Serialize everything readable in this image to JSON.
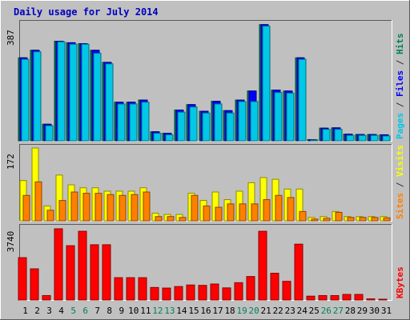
{
  "chart_data": [
    {
      "type": "bar",
      "title": "Daily usage for July 2014",
      "categories": [
        "1",
        "2",
        "3",
        "4",
        "5",
        "6",
        "7",
        "8",
        "9",
        "10",
        "11",
        "12",
        "13",
        "14",
        "15",
        "16",
        "17",
        "18",
        "19",
        "20",
        "21",
        "22",
        "23",
        "24",
        "25",
        "26",
        "27",
        "28",
        "29",
        "30",
        "31"
      ],
      "weekend_categories": [
        "5",
        "6",
        "12",
        "13",
        "19",
        "20",
        "26",
        "27"
      ],
      "axis_max_label": "387",
      "ylim": [
        0,
        387
      ],
      "legend_vertical": [
        {
          "text": "Pages",
          "color": "#00c8e6"
        },
        {
          "text": " / ",
          "color": "#333333"
        },
        {
          "text": "Files",
          "color": "#0000ff"
        },
        {
          "text": " / ",
          "color": "#333333"
        },
        {
          "text": "Hits",
          "color": "#00805c"
        }
      ],
      "series": [
        {
          "name": "Hits",
          "color": "#00805c",
          "values": [
            275,
            300,
            55,
            330,
            325,
            322,
            300,
            260,
            128,
            128,
            135,
            30,
            25,
            102,
            120,
            98,
            131,
            100,
            135,
            165,
            385,
            168,
            165,
            275,
            4,
            42,
            43,
            22,
            21,
            21,
            20
          ]
        },
        {
          "name": "Files",
          "color": "#0000ff",
          "values": [
            275,
            300,
            55,
            330,
            325,
            322,
            300,
            260,
            128,
            128,
            135,
            30,
            25,
            102,
            120,
            98,
            131,
            100,
            135,
            165,
            385,
            168,
            165,
            275,
            4,
            42,
            43,
            22,
            21,
            21,
            20
          ]
        },
        {
          "name": "Pages",
          "color": "#00c8e6",
          "values": [
            270,
            295,
            50,
            328,
            320,
            320,
            290,
            255,
            122,
            122,
            128,
            25,
            20,
            95,
            112,
            92,
            122,
            92,
            130,
            130,
            380,
            160,
            158,
            270,
            2,
            38,
            38,
            18,
            18,
            18,
            16
          ]
        }
      ]
    },
    {
      "type": "bar",
      "axis_max_label": "172",
      "ylim": [
        0,
        172
      ],
      "legend_vertical": [
        {
          "text": "Sites",
          "color": "#ff8000"
        },
        {
          "text": " / ",
          "color": "#333333"
        },
        {
          "text": "Visits",
          "color": "#ffff00"
        }
      ],
      "series": [
        {
          "name": "Visits",
          "color": "#ffff00",
          "values": [
            95,
            172,
            35,
            108,
            85,
            78,
            78,
            70,
            70,
            70,
            78,
            18,
            15,
            15,
            65,
            48,
            68,
            50,
            70,
            90,
            102,
            98,
            75,
            75,
            8,
            10,
            22,
            10,
            10,
            10,
            10
          ]
        },
        {
          "name": "Sites",
          "color": "#ff8000",
          "values": [
            60,
            92,
            25,
            48,
            68,
            65,
            65,
            62,
            60,
            62,
            68,
            10,
            10,
            8,
            60,
            35,
            32,
            40,
            40,
            40,
            50,
            60,
            55,
            22,
            4,
            6,
            20,
            8,
            8,
            8,
            7
          ]
        }
      ]
    },
    {
      "type": "bar",
      "axis_max_label": "3740",
      "ylim": [
        0,
        3740
      ],
      "legend_vertical": [
        {
          "text": "KBytes",
          "color": "#ff0000"
        }
      ],
      "series": [
        {
          "name": "KBytes",
          "color": "#ff0000",
          "values": [
            2200,
            1620,
            230,
            3700,
            2820,
            3570,
            2870,
            2870,
            1160,
            1160,
            1160,
            650,
            620,
            700,
            780,
            760,
            830,
            630,
            900,
            1220,
            3570,
            1390,
            970,
            2900,
            200,
            230,
            230,
            290,
            290,
            60,
            30
          ]
        }
      ]
    }
  ]
}
